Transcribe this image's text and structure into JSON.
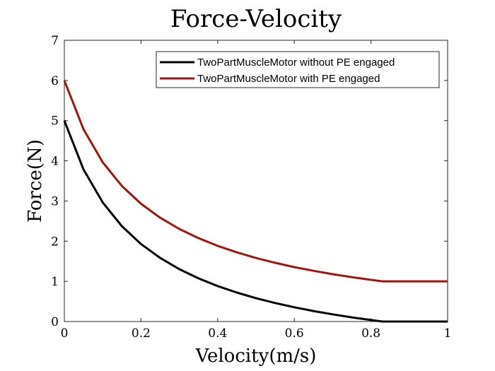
{
  "chart_data": {
    "type": "line",
    "title": "Force-Velocity",
    "xlabel": "Velocity(m/s)",
    "ylabel": "Force(N)",
    "xlim": [
      0,
      1
    ],
    "ylim": [
      0,
      7
    ],
    "xticks": [
      "0",
      "0.2",
      "0.4",
      "0.6",
      "0.8",
      "1"
    ],
    "yticks": [
      "0",
      "1",
      "2",
      "3",
      "4",
      "5",
      "6",
      "7"
    ],
    "grid": false,
    "legend_position": "top-right",
    "x": [
      0,
      0.05,
      0.1,
      0.15,
      0.2,
      0.25,
      0.3,
      0.35,
      0.4,
      0.45,
      0.5,
      0.55,
      0.6,
      0.65,
      0.7,
      0.75,
      0.8,
      0.83,
      1.0
    ],
    "series": [
      {
        "name": "TwoPartMuscleMotor without PE engaged",
        "color": "#000000",
        "values": [
          5,
          3.785,
          2.965,
          2.375,
          1.93,
          1.583,
          1.304,
          1.075,
          0.883,
          0.721,
          0.582,
          0.461,
          0.355,
          0.262,
          0.179,
          0.104,
          0.037,
          0,
          0
        ]
      },
      {
        "name": "TwoPartMuscleMotor with PE engaged",
        "color": "#a2140e",
        "values": [
          6,
          4.785,
          3.965,
          3.375,
          2.93,
          2.583,
          2.304,
          2.075,
          1.883,
          1.721,
          1.582,
          1.461,
          1.355,
          1.262,
          1.179,
          1.104,
          1.037,
          1,
          1
        ]
      }
    ]
  }
}
